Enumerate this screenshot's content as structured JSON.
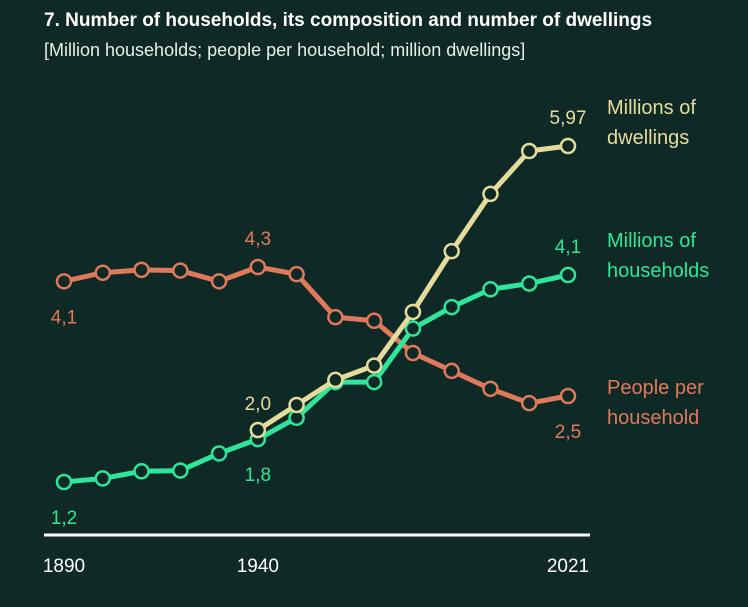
{
  "title": "7. Number of households, its composition and number of dwellings",
  "subtitle": "[Million households; people per household; million dwellings]",
  "colors": {
    "background": "#0f2a26",
    "dwellings": "#e5dc9c",
    "households": "#2ee59a",
    "people": "#e0795a",
    "axis": "#ffffff",
    "tick_text": "#ffffff"
  },
  "chart_data": {
    "type": "line",
    "x": [
      1890,
      1900,
      1910,
      1920,
      1930,
      1940,
      1950,
      1960,
      1970,
      1980,
      1990,
      2000,
      2010,
      2021
    ],
    "x_ticks": [
      "1890",
      "1940",
      "2021"
    ],
    "series": [
      {
        "name": "Millions of dwellings",
        "label_lines": [
          "Millions of",
          "dwellings"
        ],
        "color": "#e5dc9c",
        "x": [
          1940,
          1950,
          1960,
          1970,
          1980,
          1990,
          2000,
          2010,
          2021
        ],
        "values": [
          2.0,
          2.35,
          2.7,
          2.9,
          3.65,
          4.5,
          5.3,
          5.9,
          5.97
        ],
        "value_labels": [
          {
            "index": 0,
            "text": "2,0",
            "pos": "above-left"
          },
          {
            "index": 8,
            "text": "5,97",
            "pos": "above-left"
          }
        ]
      },
      {
        "name": "Millions of households",
        "label_lines": [
          "Millions of",
          "households"
        ],
        "color": "#2ee59a",
        "x": [
          1890,
          1900,
          1910,
          1920,
          1930,
          1940,
          1950,
          1960,
          1970,
          1980,
          1990,
          2000,
          2010,
          2021
        ],
        "values": [
          1.2,
          1.25,
          1.35,
          1.36,
          1.6,
          1.8,
          2.1,
          2.6,
          2.6,
          3.35,
          3.65,
          3.9,
          3.98,
          4.1
        ],
        "value_labels": [
          {
            "index": 0,
            "text": "1,2",
            "pos": "below"
          },
          {
            "index": 5,
            "text": "1,8",
            "pos": "below"
          },
          {
            "index": 13,
            "text": "4,1",
            "pos": "above"
          }
        ]
      },
      {
        "name": "People per household",
        "label_lines": [
          "People per",
          "household"
        ],
        "color": "#e0795a",
        "x": [
          1890,
          1900,
          1910,
          1920,
          1930,
          1940,
          1950,
          1960,
          1970,
          1980,
          1990,
          2000,
          2010,
          2021
        ],
        "values": [
          4.1,
          4.22,
          4.26,
          4.25,
          4.1,
          4.3,
          4.2,
          3.6,
          3.55,
          3.1,
          2.85,
          2.6,
          2.4,
          2.5
        ],
        "value_labels": [
          {
            "index": 0,
            "text": "4,1",
            "pos": "below"
          },
          {
            "index": 5,
            "text": "4,3",
            "pos": "above"
          },
          {
            "index": 13,
            "text": "2,5",
            "pos": "below"
          }
        ]
      }
    ]
  }
}
